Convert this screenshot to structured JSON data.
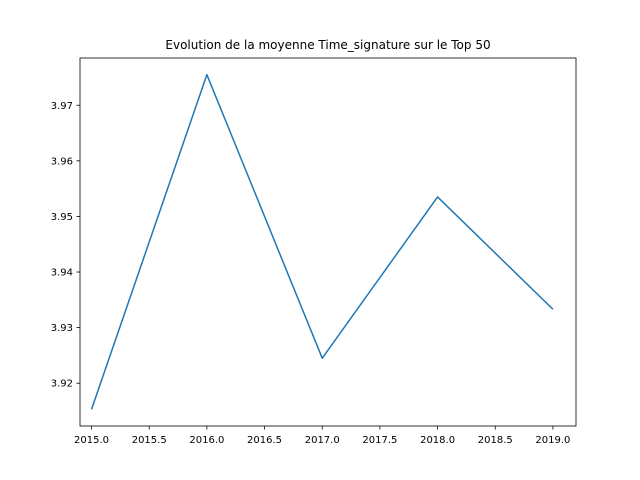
{
  "chart_data": {
    "type": "line",
    "title": "Evolution de la moyenne Time_signature sur le Top 50",
    "xlabel": "",
    "ylabel": "",
    "x": [
      2015,
      2016,
      2017,
      2018,
      2019
    ],
    "series": [
      {
        "values": [
          3.9153,
          3.9755,
          3.9245,
          3.9535,
          3.9333
        ],
        "color": "#1f77b4"
      }
    ],
    "xlim": [
      2014.9,
      2019.2
    ],
    "ylim": [
      3.9123,
      3.9785
    ],
    "xticks": [
      2015.0,
      2015.5,
      2016.0,
      2016.5,
      2017.0,
      2017.5,
      2018.0,
      2018.5,
      2019.0
    ],
    "xtick_labels": [
      "2015.0",
      "2015.5",
      "2016.0",
      "2016.5",
      "2017.0",
      "2017.5",
      "2018.0",
      "2018.5",
      "2019.0"
    ],
    "yticks": [
      3.92,
      3.93,
      3.94,
      3.95,
      3.96,
      3.97
    ],
    "ytick_labels": [
      "3.92",
      "3.93",
      "3.94",
      "3.95",
      "3.96",
      "3.97"
    ],
    "grid": false,
    "legend": "none"
  }
}
